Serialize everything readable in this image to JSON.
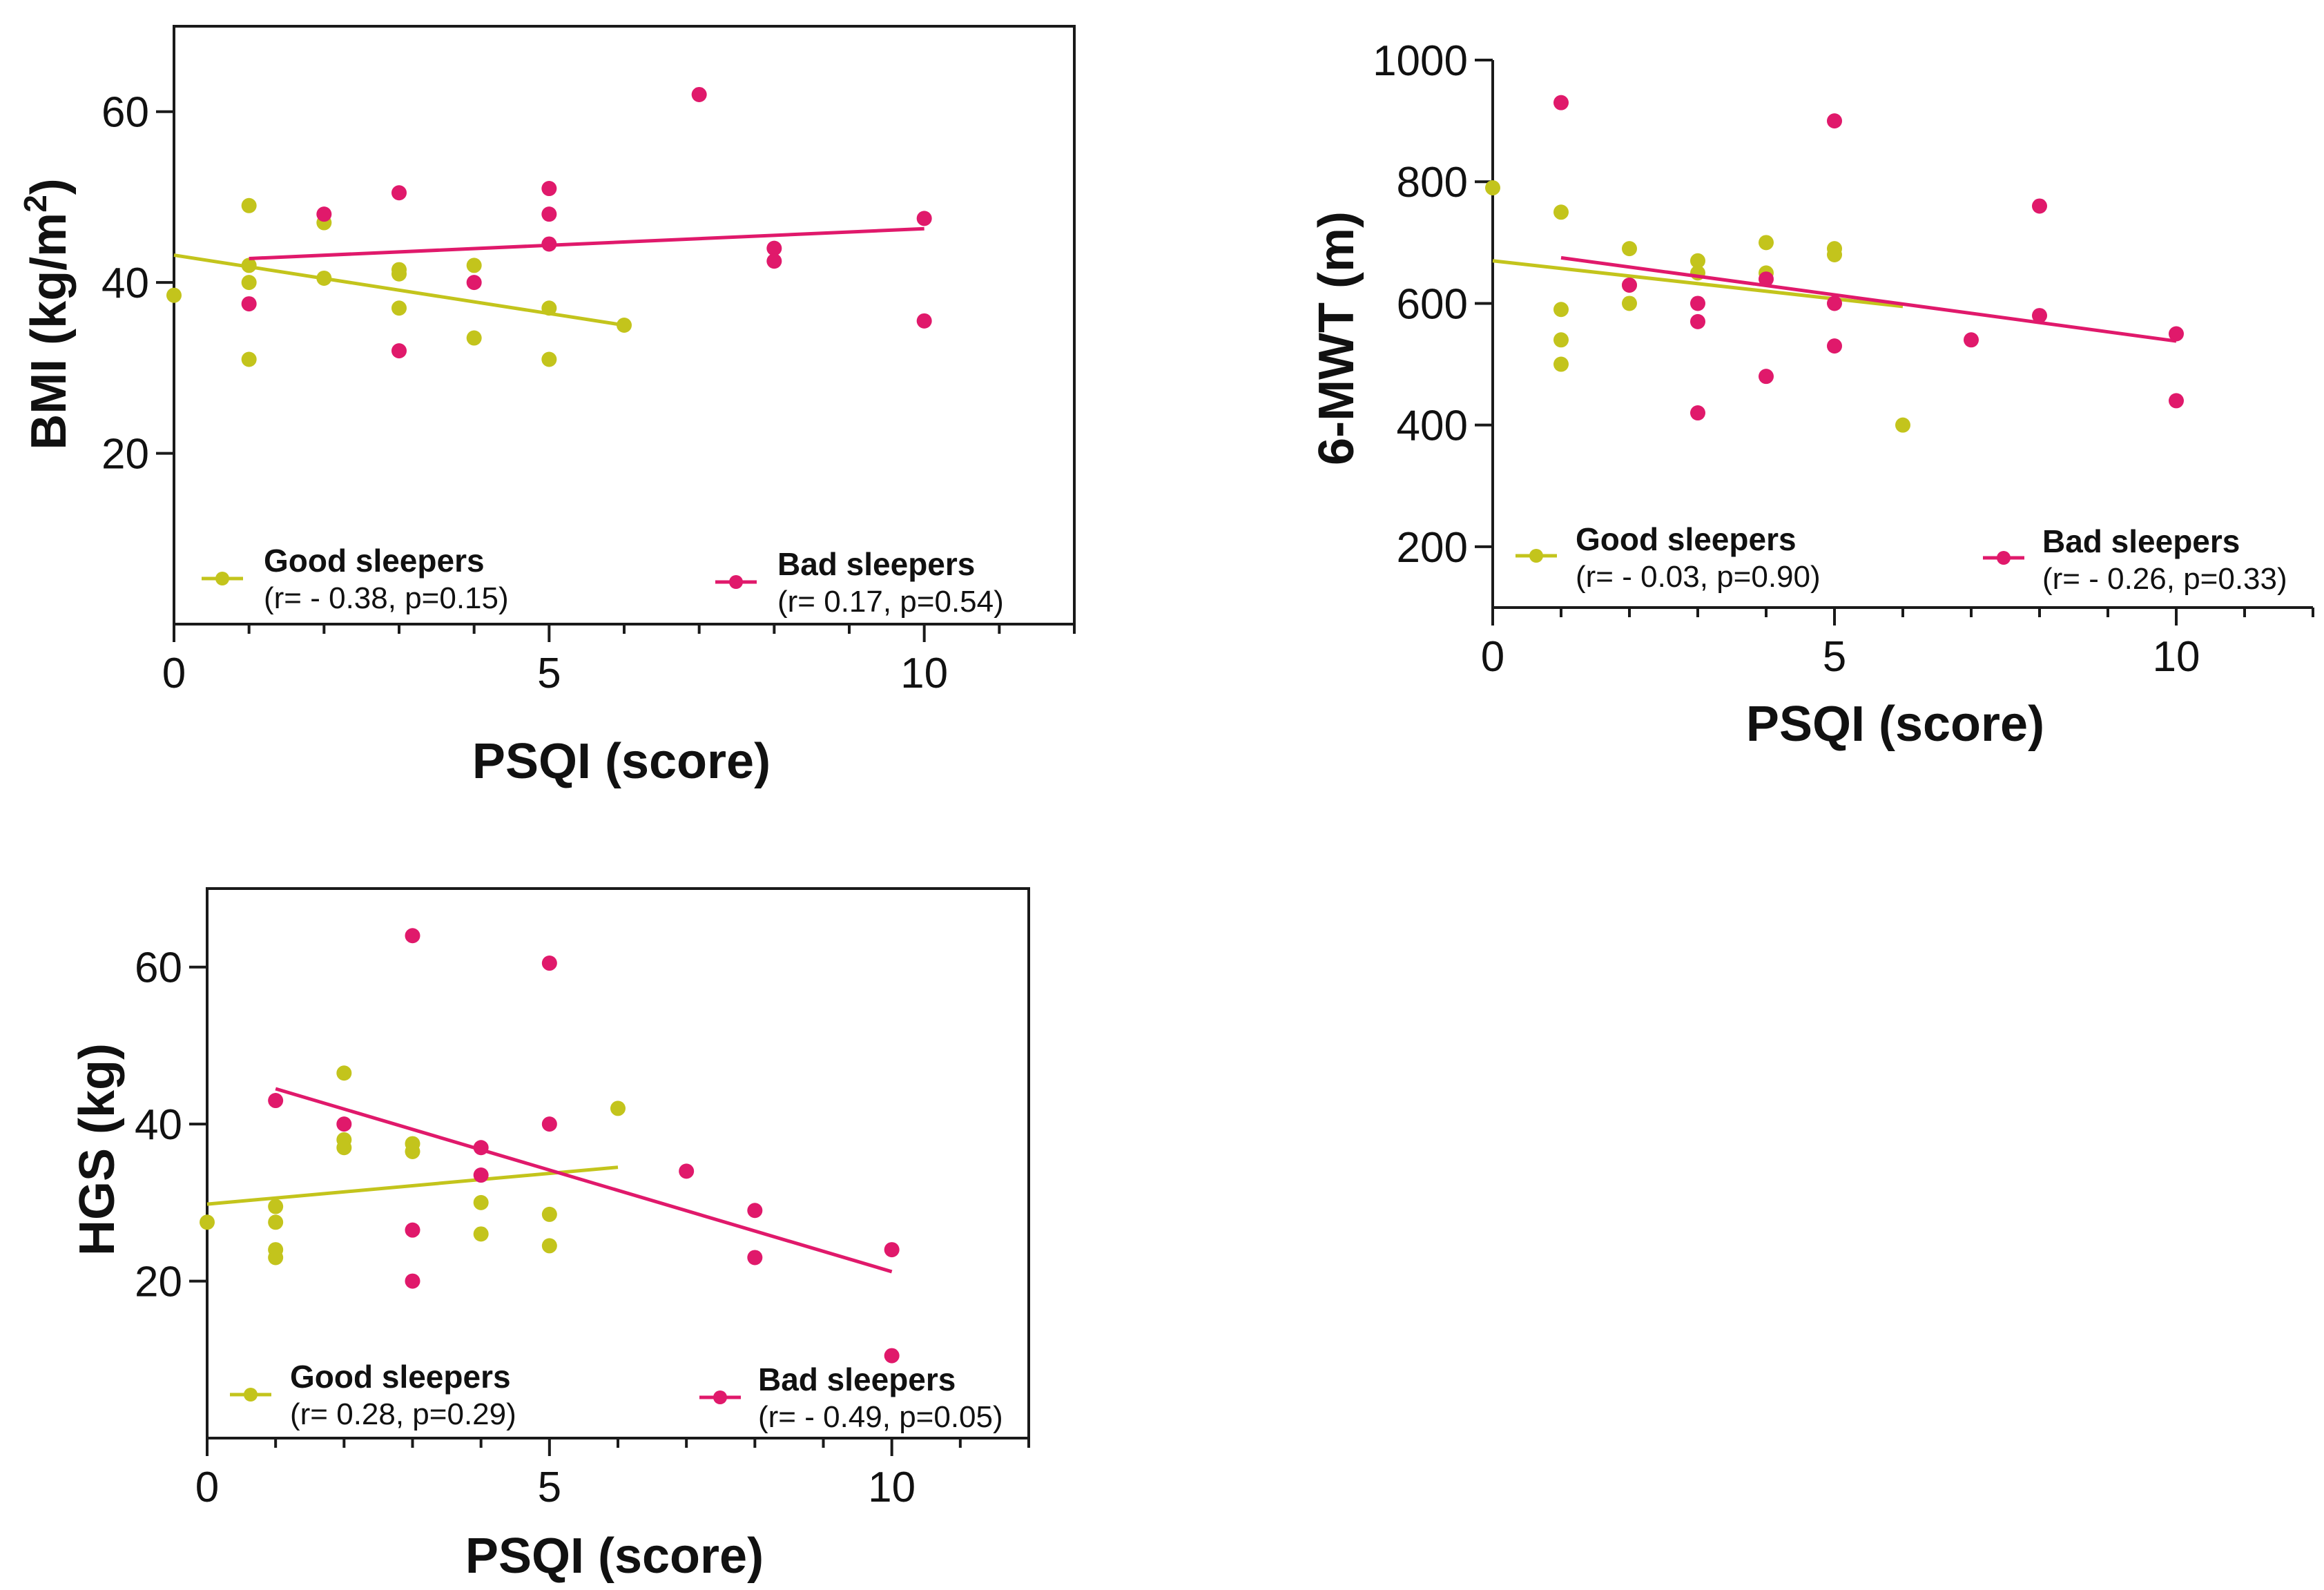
{
  "colors": {
    "good": "#c3c41c",
    "bad": "#e0196b",
    "axis": "#1a1a1a"
  },
  "chart_data": [
    {
      "type": "scatter",
      "xlabel": "PSQI (score)",
      "ylabel_main": "BMI (kg/m",
      "ylabel_sup": "2",
      "ylabel_close": ")",
      "xlim": [
        0,
        12
      ],
      "ylim": [
        0,
        70
      ],
      "xticks": [
        0,
        5,
        10
      ],
      "yticks": [
        20,
        40,
        60
      ],
      "series": [
        {
          "name": "Good sleepers",
          "stats": "(r= - 0.38, p=0.15)",
          "color": "good",
          "x": [
            0,
            1,
            1,
            1,
            1,
            2,
            2,
            3,
            3,
            3,
            4,
            4,
            5,
            5,
            6
          ],
          "y": [
            38.5,
            49,
            42,
            40,
            31,
            47,
            40.5,
            41.5,
            37,
            41,
            42,
            33.5,
            37,
            31,
            35
          ],
          "fit": {
            "x": [
              0,
              6
            ],
            "y": [
              43.2,
              35
            ]
          }
        },
        {
          "name": "Bad sleepers",
          "stats": "(r= 0.17, p=0.54)",
          "color": "bad",
          "x": [
            1,
            2,
            3,
            3,
            4,
            5,
            5,
            5,
            7,
            8,
            8,
            10,
            10
          ],
          "y": [
            37.5,
            48,
            50.5,
            32,
            40,
            51,
            48,
            44.5,
            62,
            44,
            42.5,
            47.5,
            35.5
          ],
          "fit": {
            "x": [
              1,
              10
            ],
            "y": [
              42.8,
              46.3
            ]
          }
        }
      ]
    },
    {
      "type": "scatter",
      "xlabel": "PSQI (score)",
      "ylabel": "6-MWT (m)",
      "xlim": [
        0,
        12
      ],
      "ylim": [
        100,
        1000
      ],
      "xticks": [
        0,
        5,
        10
      ],
      "yticks": [
        200,
        400,
        600,
        800,
        1000
      ],
      "series": [
        {
          "name": "Good sleepers",
          "stats": "(r= - 0.03, p=0.90)",
          "color": "good",
          "x": [
            0,
            1,
            1,
            1,
            1,
            2,
            2,
            2,
            3,
            3,
            4,
            4,
            5,
            5,
            6
          ],
          "y": [
            790,
            750,
            590,
            540,
            500,
            690,
            630,
            600,
            670,
            650,
            700,
            650,
            690,
            680,
            400
          ],
          "fit": {
            "x": [
              0,
              6
            ],
            "y": [
              670,
              595
            ]
          }
        },
        {
          "name": "Bad sleepers",
          "stats": "(r= - 0.26, p=0.33)",
          "color": "bad",
          "x": [
            1,
            2,
            3,
            3,
            3,
            4,
            4,
            5,
            5,
            5,
            7,
            8,
            8,
            10,
            10
          ],
          "y": [
            930,
            630,
            600,
            570,
            420,
            640,
            480,
            900,
            600,
            530,
            540,
            760,
            580,
            550,
            440
          ],
          "fit": {
            "x": [
              1,
              10
            ],
            "y": [
              675,
              538
            ]
          }
        }
      ]
    },
    {
      "type": "scatter",
      "xlabel": "PSQI (score)",
      "ylabel": "HGS (kg)",
      "xlim": [
        0,
        12
      ],
      "ylim": [
        0,
        70
      ],
      "xticks": [
        0,
        5,
        10
      ],
      "yticks": [
        20,
        40,
        60
      ],
      "series": [
        {
          "name": "Good sleepers",
          "stats": "(r= 0.28, p=0.29)",
          "color": "good",
          "x": [
            0,
            1,
            1,
            1,
            1,
            2,
            2,
            2,
            3,
            3,
            4,
            4,
            5,
            5,
            6
          ],
          "y": [
            27.5,
            29.5,
            27.5,
            24,
            23,
            46.5,
            38,
            37,
            37.5,
            36.5,
            30,
            26,
            28.5,
            24.5,
            42
          ],
          "fit": {
            "x": [
              0,
              6
            ],
            "y": [
              29.8,
              34.5
            ]
          }
        },
        {
          "name": "Bad sleepers",
          "stats": "(r= - 0.49, p=0.05)",
          "color": "bad",
          "x": [
            1,
            2,
            3,
            3,
            3,
            4,
            4,
            5,
            5,
            7,
            8,
            8,
            10,
            10
          ],
          "y": [
            43,
            40,
            64,
            26.5,
            20,
            37,
            33.5,
            60.5,
            40,
            34,
            29,
            23,
            24,
            10.5
          ],
          "fit": {
            "x": [
              1,
              10
            ],
            "y": [
              44.5,
              21.2
            ]
          }
        }
      ]
    }
  ]
}
